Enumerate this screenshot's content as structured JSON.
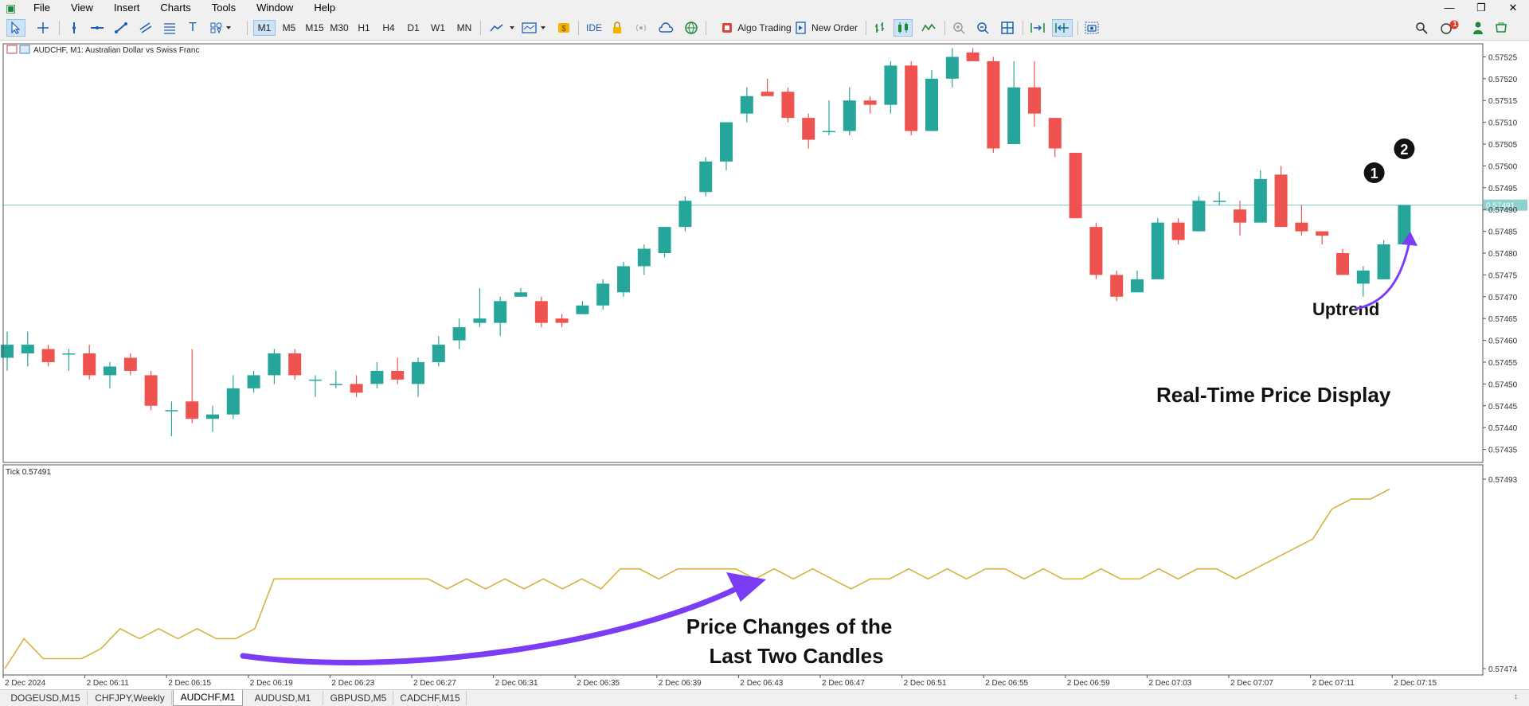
{
  "menu": {
    "items": [
      "File",
      "View",
      "Insert",
      "Charts",
      "Tools",
      "Window",
      "Help"
    ]
  },
  "toolbar": {
    "timeframes": [
      "M1",
      "M5",
      "M15",
      "M30",
      "H1",
      "H4",
      "D1",
      "W1",
      "MN"
    ],
    "selected_timeframe": "M1",
    "ide_label": "IDE",
    "algo_trading_label": "Algo Trading",
    "new_order_label": "New Order",
    "notification_count": "1"
  },
  "main_chart": {
    "title": "AUDCHF, M1:  Australian Dollar vs Swiss Franc",
    "current_price_label": "0.57491",
    "annotation_realtime": "Real-Time Price Display",
    "annotation_uptrend": "Uptrend",
    "marker_1": "1",
    "marker_2": "2",
    "colors": {
      "up": "#26a69a",
      "down": "#ef5350",
      "price_line": "#8ed1cf"
    }
  },
  "sub_chart": {
    "title": "Tick 0.57491",
    "annotation_line1": "Price Changes of the",
    "annotation_line2": "Last Two Candles",
    "line_color": "#d4b43c",
    "arrow_color": "#7b3cf5"
  },
  "chart_data": [
    {
      "type": "candlestick",
      "symbol": "AUDCHF",
      "timeframe": "M1",
      "y_ticks": [
        "0.57525",
        "0.57520",
        "0.57515",
        "0.57510",
        "0.57505",
        "0.57500",
        "0.57495",
        "0.57490",
        "0.57485",
        "0.57480",
        "0.57475",
        "0.57470",
        "0.57465",
        "0.57460",
        "0.57455",
        "0.57450",
        "0.57445",
        "0.57440",
        "0.57435"
      ],
      "ylim": [
        0.57432,
        0.57528
      ],
      "x_labels": [
        "2 Dec 2024",
        "2 Dec 06:11",
        "2 Dec 06:15",
        "2 Dec 06:19",
        "2 Dec 06:23",
        "2 Dec 06:27",
        "2 Dec 06:31",
        "2 Dec 06:35",
        "2 Dec 06:39",
        "2 Dec 06:43",
        "2 Dec 06:47",
        "2 Dec 06:51",
        "2 Dec 06:55",
        "2 Dec 06:59",
        "2 Dec 07:03",
        "2 Dec 07:07",
        "2 Dec 07:11",
        "2 Dec 07:15"
      ],
      "candles": [
        {
          "o": 0.57456,
          "h": 0.57462,
          "l": 0.57453,
          "c": 0.57459
        },
        {
          "o": 0.57457,
          "h": 0.57462,
          "l": 0.57454,
          "c": 0.57459
        },
        {
          "o": 0.57458,
          "h": 0.57459,
          "l": 0.57454,
          "c": 0.57455
        },
        {
          "o": 0.57457,
          "h": 0.57458,
          "l": 0.57453,
          "c": 0.57457
        },
        {
          "o": 0.57457,
          "h": 0.57459,
          "l": 0.57451,
          "c": 0.57452
        },
        {
          "o": 0.57452,
          "h": 0.57455,
          "l": 0.57449,
          "c": 0.57454
        },
        {
          "o": 0.57456,
          "h": 0.57457,
          "l": 0.57452,
          "c": 0.57453
        },
        {
          "o": 0.57452,
          "h": 0.57453,
          "l": 0.57444,
          "c": 0.57445
        },
        {
          "o": 0.57444,
          "h": 0.57446,
          "l": 0.57438,
          "c": 0.57444
        },
        {
          "o": 0.57446,
          "h": 0.57458,
          "l": 0.57441,
          "c": 0.57442
        },
        {
          "o": 0.57442,
          "h": 0.57445,
          "l": 0.57439,
          "c": 0.57443
        },
        {
          "o": 0.57443,
          "h": 0.57452,
          "l": 0.57442,
          "c": 0.57449
        },
        {
          "o": 0.57449,
          "h": 0.57453,
          "l": 0.57448,
          "c": 0.57452
        },
        {
          "o": 0.57452,
          "h": 0.57458,
          "l": 0.5745,
          "c": 0.57457
        },
        {
          "o": 0.57457,
          "h": 0.57458,
          "l": 0.57451,
          "c": 0.57452
        },
        {
          "o": 0.57451,
          "h": 0.57452,
          "l": 0.57447,
          "c": 0.57451
        },
        {
          "o": 0.5745,
          "h": 0.57453,
          "l": 0.57449,
          "c": 0.5745
        },
        {
          "o": 0.5745,
          "h": 0.57452,
          "l": 0.57447,
          "c": 0.57448
        },
        {
          "o": 0.5745,
          "h": 0.57455,
          "l": 0.57449,
          "c": 0.57453
        },
        {
          "o": 0.57453,
          "h": 0.57456,
          "l": 0.5745,
          "c": 0.57451
        },
        {
          "o": 0.5745,
          "h": 0.57456,
          "l": 0.57447,
          "c": 0.57455
        },
        {
          "o": 0.57455,
          "h": 0.57461,
          "l": 0.57454,
          "c": 0.57459
        },
        {
          "o": 0.5746,
          "h": 0.57465,
          "l": 0.57458,
          "c": 0.57463
        },
        {
          "o": 0.57464,
          "h": 0.57472,
          "l": 0.57463,
          "c": 0.57465
        },
        {
          "o": 0.57464,
          "h": 0.5747,
          "l": 0.57461,
          "c": 0.57469
        },
        {
          "o": 0.5747,
          "h": 0.57472,
          "l": 0.5747,
          "c": 0.57471
        },
        {
          "o": 0.57469,
          "h": 0.5747,
          "l": 0.57463,
          "c": 0.57464
        },
        {
          "o": 0.57465,
          "h": 0.57466,
          "l": 0.57463,
          "c": 0.57464
        },
        {
          "o": 0.57466,
          "h": 0.57469,
          "l": 0.57466,
          "c": 0.57468
        },
        {
          "o": 0.57468,
          "h": 0.57474,
          "l": 0.57467,
          "c": 0.57473
        },
        {
          "o": 0.57471,
          "h": 0.57478,
          "l": 0.5747,
          "c": 0.57477
        },
        {
          "o": 0.57477,
          "h": 0.57482,
          "l": 0.57475,
          "c": 0.57481
        },
        {
          "o": 0.5748,
          "h": 0.57486,
          "l": 0.57479,
          "c": 0.57486
        },
        {
          "o": 0.57486,
          "h": 0.57493,
          "l": 0.57485,
          "c": 0.57492
        },
        {
          "o": 0.57494,
          "h": 0.57502,
          "l": 0.57493,
          "c": 0.57501
        },
        {
          "o": 0.57501,
          "h": 0.5751,
          "l": 0.57499,
          "c": 0.5751
        },
        {
          "o": 0.57512,
          "h": 0.57518,
          "l": 0.5751,
          "c": 0.57516
        },
        {
          "o": 0.57517,
          "h": 0.5752,
          "l": 0.57516,
          "c": 0.57516
        },
        {
          "o": 0.57517,
          "h": 0.57518,
          "l": 0.5751,
          "c": 0.57511
        },
        {
          "o": 0.57511,
          "h": 0.57512,
          "l": 0.57504,
          "c": 0.57506
        },
        {
          "o": 0.57508,
          "h": 0.57515,
          "l": 0.57507,
          "c": 0.57508
        },
        {
          "o": 0.57508,
          "h": 0.57518,
          "l": 0.57507,
          "c": 0.57515
        },
        {
          "o": 0.57515,
          "h": 0.57516,
          "l": 0.57512,
          "c": 0.57514
        },
        {
          "o": 0.57514,
          "h": 0.57524,
          "l": 0.57512,
          "c": 0.57523
        },
        {
          "o": 0.57523,
          "h": 0.57524,
          "l": 0.57507,
          "c": 0.57508
        },
        {
          "o": 0.57508,
          "h": 0.57522,
          "l": 0.57508,
          "c": 0.5752
        },
        {
          "o": 0.5752,
          "h": 0.57527,
          "l": 0.57518,
          "c": 0.57525
        },
        {
          "o": 0.57526,
          "h": 0.57527,
          "l": 0.57524,
          "c": 0.57524
        },
        {
          "o": 0.57524,
          "h": 0.57525,
          "l": 0.57503,
          "c": 0.57504
        },
        {
          "o": 0.57505,
          "h": 0.57524,
          "l": 0.57505,
          "c": 0.57518
        },
        {
          "o": 0.57518,
          "h": 0.57524,
          "l": 0.57509,
          "c": 0.57512
        },
        {
          "o": 0.57511,
          "h": 0.57511,
          "l": 0.57502,
          "c": 0.57504
        },
        {
          "o": 0.57503,
          "h": 0.57503,
          "l": 0.57488,
          "c": 0.57488
        },
        {
          "o": 0.57486,
          "h": 0.57487,
          "l": 0.57474,
          "c": 0.57475
        },
        {
          "o": 0.57475,
          "h": 0.57476,
          "l": 0.57469,
          "c": 0.5747
        },
        {
          "o": 0.57471,
          "h": 0.57476,
          "l": 0.57471,
          "c": 0.57474
        },
        {
          "o": 0.57474,
          "h": 0.57488,
          "l": 0.57474,
          "c": 0.57487
        },
        {
          "o": 0.57487,
          "h": 0.57488,
          "l": 0.57482,
          "c": 0.57483
        },
        {
          "o": 0.57485,
          "h": 0.57493,
          "l": 0.57485,
          "c": 0.57492
        },
        {
          "o": 0.57492,
          "h": 0.57494,
          "l": 0.57491,
          "c": 0.57492
        },
        {
          "o": 0.5749,
          "h": 0.57492,
          "l": 0.57484,
          "c": 0.57487
        },
        {
          "o": 0.57487,
          "h": 0.57499,
          "l": 0.57487,
          "c": 0.57497
        },
        {
          "o": 0.57498,
          "h": 0.575,
          "l": 0.57486,
          "c": 0.57486
        },
        {
          "o": 0.57487,
          "h": 0.57491,
          "l": 0.57484,
          "c": 0.57485
        },
        {
          "o": 0.57485,
          "h": 0.57485,
          "l": 0.57482,
          "c": 0.57484
        },
        {
          "o": 0.5748,
          "h": 0.57481,
          "l": 0.57475,
          "c": 0.57475
        },
        {
          "o": 0.57473,
          "h": 0.57477,
          "l": 0.5747,
          "c": 0.57476
        },
        {
          "o": 0.57474,
          "h": 0.57483,
          "l": 0.57474,
          "c": 0.57482
        },
        {
          "o": 0.57482,
          "h": 0.57491,
          "l": 0.57482,
          "c": 0.57491
        }
      ],
      "current_price": 0.57491
    },
    {
      "type": "line",
      "title": "Tick 0.57491",
      "y_ticks": [
        "0.57493",
        "0.57474"
      ],
      "ylim": [
        0.57474,
        0.57493
      ],
      "values": [
        0.57474,
        0.57477,
        0.57475,
        0.57475,
        0.57475,
        0.57476,
        0.57478,
        0.57477,
        0.57478,
        0.57477,
        0.57478,
        0.57477,
        0.57477,
        0.57478,
        0.57483,
        0.57483,
        0.57483,
        0.57483,
        0.57483,
        0.57483,
        0.57483,
        0.57483,
        0.57483,
        0.57482,
        0.57483,
        0.57482,
        0.57483,
        0.57482,
        0.57483,
        0.57482,
        0.57483,
        0.57482,
        0.57484,
        0.57484,
        0.57483,
        0.57484,
        0.57484,
        0.57484,
        0.57484,
        0.57483,
        0.57484,
        0.57483,
        0.57484,
        0.57483,
        0.57482,
        0.57483,
        0.57483,
        0.57484,
        0.57483,
        0.57484,
        0.57483,
        0.57484,
        0.57484,
        0.57483,
        0.57484,
        0.57483,
        0.57483,
        0.57484,
        0.57483,
        0.57483,
        0.57484,
        0.57483,
        0.57484,
        0.57484,
        0.57483,
        0.57484,
        0.57485,
        0.57486,
        0.57487,
        0.5749,
        0.57491,
        0.57491,
        0.57492
      ]
    }
  ],
  "tabs": [
    {
      "label": "DOGEUSD,M15",
      "active": false
    },
    {
      "label": "CHFJPY,Weekly",
      "active": false
    },
    {
      "label": "AUDCHF,M1",
      "active": true
    },
    {
      "label": "AUDUSD,M1",
      "active": false
    },
    {
      "label": "GBPUSD,M5",
      "active": false
    },
    {
      "label": "CADCHF,M15",
      "active": false
    }
  ]
}
